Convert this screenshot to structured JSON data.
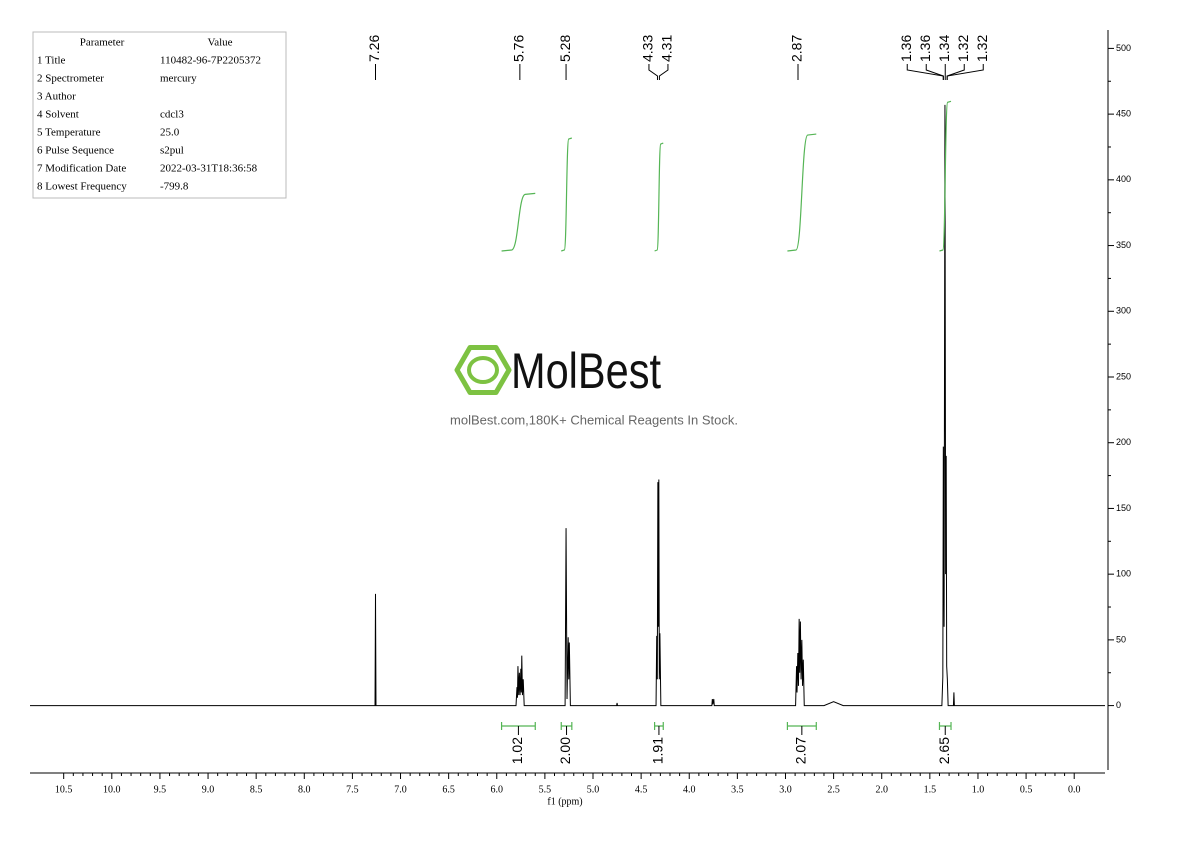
{
  "parameters": {
    "header": [
      "Parameter",
      "Value"
    ],
    "rows": [
      [
        "1 Title",
        "110482-96-7P2205372"
      ],
      [
        "2 Spectrometer",
        "mercury"
      ],
      [
        "3 Author"
      ],
      [
        "4 Solvent",
        "cdcl3"
      ],
      [
        "5 Temperature",
        "25.0"
      ],
      [
        "6 Pulse Sequence",
        "s2pul"
      ],
      [
        "7 Modification Date",
        "2022-03-31T18:36:58"
      ],
      [
        "8 Lowest Frequency",
        "-799.8"
      ]
    ]
  },
  "watermark": {
    "logo": "MolBest",
    "tagline": "molBest.com,180K+ Chemical Reagents In Stock."
  },
  "chart_data": {
    "type": "nmr",
    "x_label": "f1 (ppm)",
    "xlim": [
      10.85,
      -0.32
    ],
    "ylim": [
      -49,
      514
    ],
    "xticks": [
      10.5,
      {
        "value": 10,
        "label": "10.0"
      },
      9.5,
      {
        "value": 9,
        "label": "9.0"
      },
      8.5,
      {
        "value": 8,
        "label": "8.0"
      },
      7.5,
      {
        "value": 7,
        "label": "7.0"
      },
      6.5,
      {
        "value": 6,
        "label": "6.0"
      },
      5.5,
      {
        "value": 5,
        "label": "5.0"
      },
      4.5,
      {
        "value": 4,
        "label": "4.0"
      },
      3.5,
      {
        "value": 3,
        "label": "3.0"
      },
      2.5,
      {
        "value": 2,
        "label": "2.0"
      },
      1.5,
      {
        "value": 1,
        "label": "1.0"
      },
      0.5,
      {
        "value": 0,
        "label": "0.0"
      }
    ],
    "yticks": [
      0,
      50,
      100,
      150,
      200,
      250,
      300,
      350,
      400,
      450,
      500
    ],
    "series": [
      {
        "color": "#000000",
        "x": [
          10.85,
          7.265,
          7.26,
          7.255,
          5.8,
          5.79,
          5.785,
          5.78,
          5.772,
          5.765,
          5.758,
          5.75,
          5.745,
          5.74,
          5.733,
          5.725,
          5.715,
          5.29,
          5.28,
          5.27,
          5.258,
          5.252,
          5.246,
          5.235,
          4.755,
          4.75,
          4.745,
          4.345,
          4.338,
          4.332,
          4.326,
          4.321,
          4.316,
          4.311,
          4.305,
          4.295,
          3.765,
          3.76,
          3.755,
          3.745,
          3.74,
          2.895,
          2.885,
          2.88,
          2.872,
          2.865,
          2.858,
          2.852,
          2.845,
          2.838,
          2.83,
          2.823,
          2.815,
          2.805,
          2.6,
          2.5,
          2.4,
          1.375,
          1.365,
          1.36,
          1.352,
          1.343,
          1.336,
          1.33,
          1.325,
          1.318,
          1.31,
          1.255,
          1.25,
          1.245,
          1.2,
          -0.32
        ],
        "values": [
          0,
          0,
          85,
          0,
          0,
          14,
          6,
          30,
          8,
          25,
          8,
          28,
          10,
          38,
          8,
          20,
          0,
          0,
          135,
          5,
          52,
          20,
          48,
          0,
          0,
          2,
          0,
          0,
          53,
          20,
          170,
          60,
          172,
          20,
          55,
          0,
          0,
          5,
          1,
          5,
          0,
          0,
          30,
          10,
          40,
          15,
          66,
          25,
          64,
          20,
          50,
          15,
          35,
          0,
          0,
          3,
          0,
          0,
          22,
          197,
          60,
          457,
          100,
          190,
          30,
          20,
          0,
          0,
          10,
          0,
          0,
          0
        ]
      }
    ],
    "peak_labels": [
      7.26,
      5.76,
      5.28,
      4.33,
      4.31,
      2.87,
      1.36,
      1.36,
      1.34,
      1.32,
      1.32
    ],
    "integrals": {
      "color": "#55b555",
      "ranges": [
        [
          5.95,
          5.6
        ],
        [
          5.33,
          5.22
        ],
        [
          4.36,
          4.27
        ],
        [
          2.98,
          2.68
        ],
        [
          1.4,
          1.28
        ]
      ],
      "values": [
        1.02,
        2,
        1.91,
        2.07,
        2.65
      ],
      "value_labels": [
        "1.02",
        "2.00",
        "1.91",
        "2.07",
        "2.65"
      ]
    }
  }
}
